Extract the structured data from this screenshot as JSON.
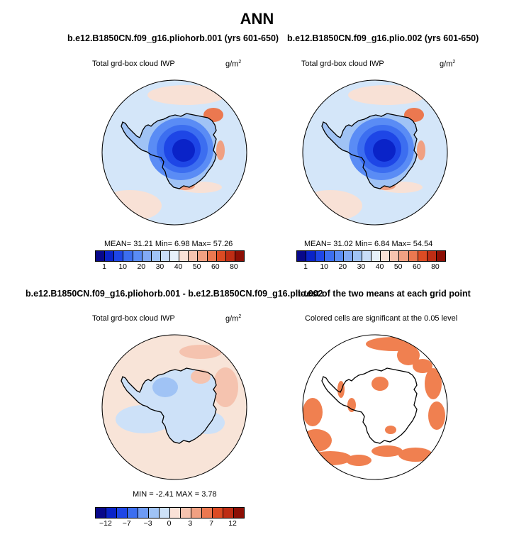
{
  "main_title": "ANN",
  "panels": [
    {
      "title": "b.e12.B1850CN.f09_g16.pliohorb.001 (yrs 601-650)",
      "variable": "Total grd-box cloud IWP",
      "units_base": "g/m",
      "units_exp": "2",
      "stats_text": "MEAN=   31.21   Min=     6.98   Max=   57.26"
    },
    {
      "title": "b.e12.B1850CN.f09_g16.plio.002 (yrs 601-650)",
      "variable": "Total grd-box cloud IWP",
      "units_base": "g/m",
      "units_exp": "2",
      "stats_text": "MEAN=   31.02   Min=     6.84   Max=   54.54"
    },
    {
      "title": "b.e12.B1850CN.f09_g16.pliohorb.001 - b.e12.B1850CN.f09_g16.plio.002",
      "variable": "Total grd-box cloud IWP",
      "units_base": "g/m",
      "units_exp": "2",
      "stats_text": "MIN =   -2.41  MAX =    3.78"
    },
    {
      "title": "t-test of the two means at each grid point",
      "variable": "Colored cells are significant at the 0.05 level"
    }
  ],
  "chart_data": [
    {
      "type": "heatmap",
      "projection": "south-polar stereographic",
      "title": "b.e12.B1850CN.f09_g16.pliohorb.001 (yrs 601-650)",
      "variable": "Total grd-box cloud IWP",
      "units": "g/m2",
      "mean": 31.21,
      "min": 6.98,
      "max": 57.26,
      "levels": [
        1,
        5,
        10,
        15,
        20,
        25,
        30,
        35,
        40,
        45,
        50,
        55,
        60,
        70,
        80
      ],
      "level_labels": [
        "1",
        "10",
        "20",
        "30",
        "40",
        "50",
        "60",
        "80"
      ]
    },
    {
      "type": "heatmap",
      "projection": "south-polar stereographic",
      "title": "b.e12.B1850CN.f09_g16.plio.002 (yrs 601-650)",
      "variable": "Total grd-box cloud IWP",
      "units": "g/m2",
      "mean": 31.02,
      "min": 6.84,
      "max": 54.54,
      "levels": [
        1,
        5,
        10,
        15,
        20,
        25,
        30,
        35,
        40,
        45,
        50,
        55,
        60,
        70,
        80
      ],
      "level_labels": [
        "1",
        "10",
        "20",
        "30",
        "40",
        "50",
        "60",
        "80"
      ]
    },
    {
      "type": "heatmap",
      "projection": "south-polar stereographic",
      "title": "b.e12.B1850CN.f09_g16.pliohorb.001 - b.e12.B1850CN.f09_g16.plio.002",
      "variable": "Total grd-box cloud IWP",
      "units": "g/m2",
      "min": -2.41,
      "max": 3.78,
      "levels": [
        -12,
        -9,
        -7,
        -5,
        -3,
        -1,
        0,
        1,
        3,
        5,
        7,
        9,
        12
      ],
      "level_labels": [
        "−12",
        "−7",
        "−3",
        "0",
        "3",
        "7",
        "12"
      ]
    },
    {
      "type": "heatmap",
      "projection": "south-polar stereographic",
      "title": "t-test of the two means at each grid point",
      "variable": "Colored cells are significant at the 0.05 level",
      "significance_level": 0.05
    }
  ],
  "colors": {
    "abs_palette": [
      "#08088a",
      "#0a23c8",
      "#1e46e6",
      "#3c6ef0",
      "#5a8cf5",
      "#82aaf5",
      "#a0c3f5",
      "#c8dcf8",
      "#e6f0fa",
      "#fae1d7",
      "#f5c3af",
      "#f0a082",
      "#eb7850",
      "#dc4b23",
      "#be2d14",
      "#8c0f05"
    ],
    "diff_palette": [
      "#08088a",
      "#0a23c8",
      "#1e46e6",
      "#3c6ef0",
      "#6e9bf5",
      "#a0c3f5",
      "#cde1f8",
      "#fae1d7",
      "#f5c3af",
      "#f0a082",
      "#eb7850",
      "#dc4b23",
      "#be2d14",
      "#8c0f05"
    ],
    "ocean_abs": "#d4e6f9",
    "ocean_diff": "#f8e4d8",
    "significant": "#f08050"
  }
}
